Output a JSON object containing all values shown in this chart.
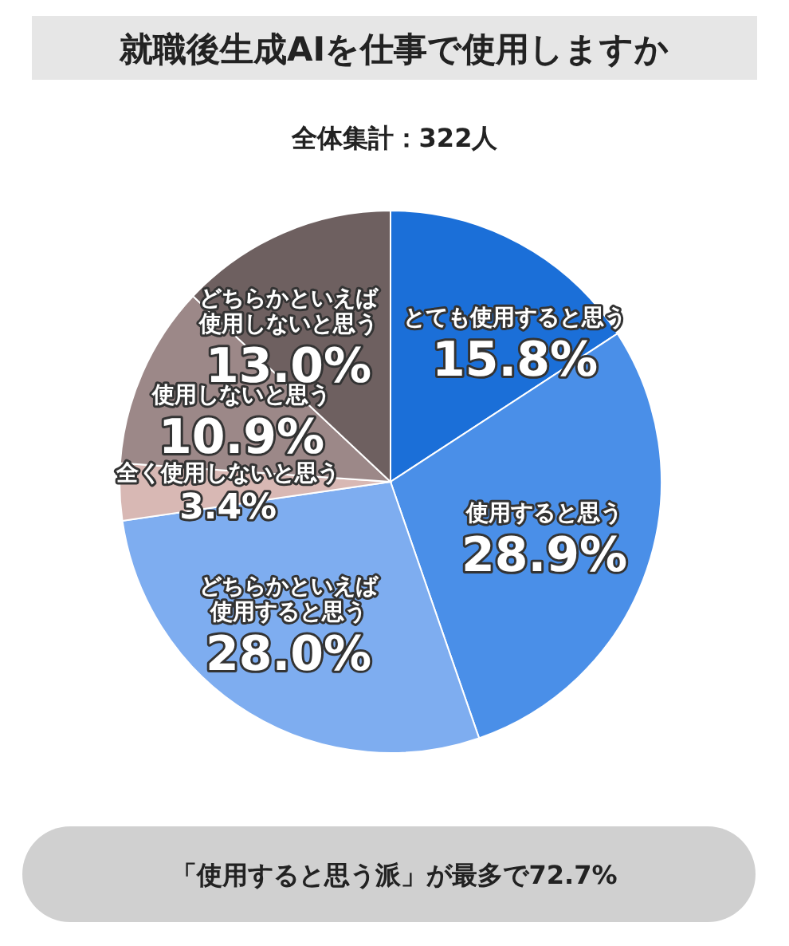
{
  "chart_data": {
    "type": "pie",
    "title": "就職後生成AIを仕事で使用しますか",
    "subtitle": "全体集計：322人",
    "categories": [
      "とても使用すると思う",
      "使用すると思う",
      "どちらかといえば使用すると思う",
      "全く使用しないと思う",
      "使用しないと思う",
      "どちらかといえば使用しないと思う"
    ],
    "values": [
      15.8,
      28.9,
      28.0,
      3.4,
      10.9,
      13.0
    ],
    "value_labels": [
      "15.8%",
      "28.9%",
      "28.0%",
      "3.4%",
      "10.9%",
      "13.0%"
    ],
    "colors": [
      "#1b6fd8",
      "#4a8fe8",
      "#7eadf0",
      "#d8b8b4",
      "#9c8888",
      "#6e6060"
    ],
    "annotations": [
      "「使用すると思う派」が最多で72.7%"
    ]
  }
}
